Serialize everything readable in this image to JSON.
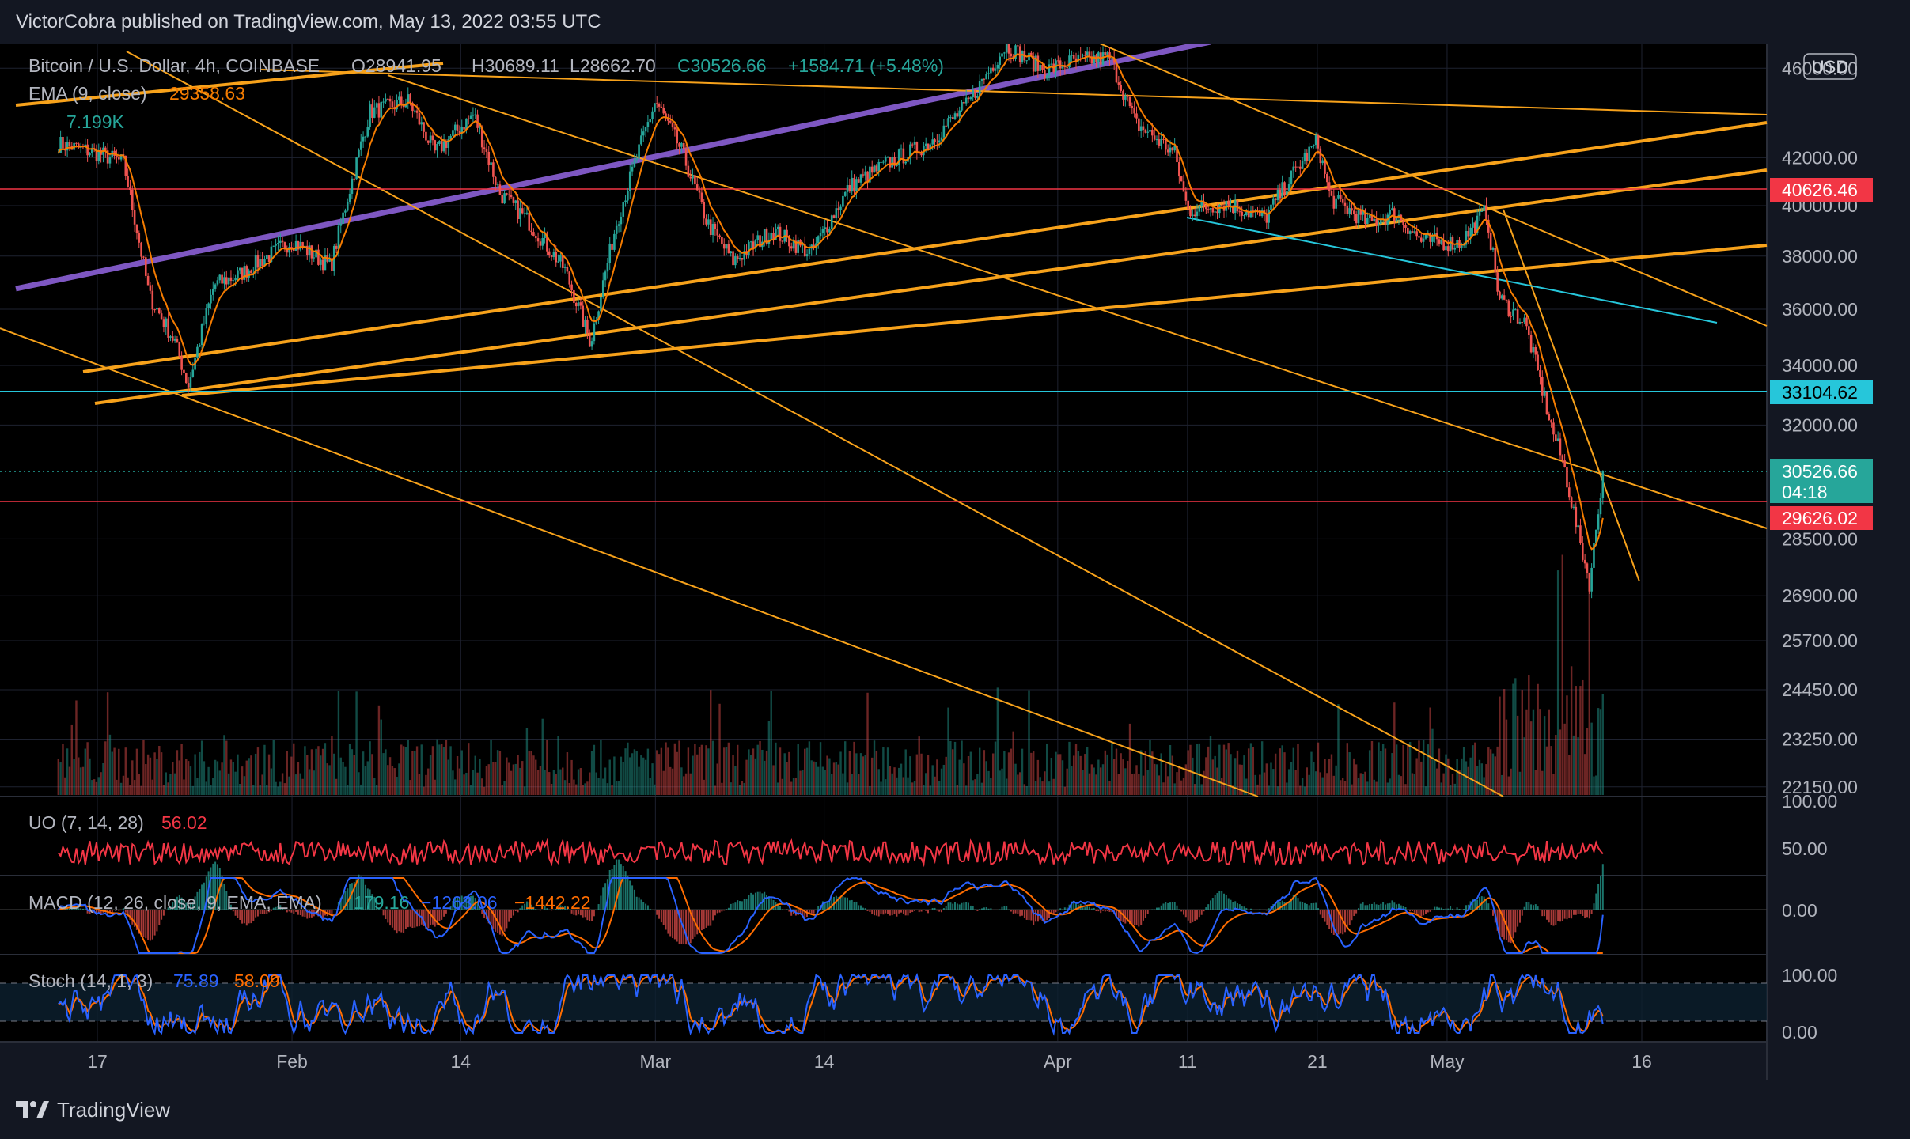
{
  "header": {
    "published": "VictorCobra published on TradingView.com, May 13, 2022 03:55 UTC"
  },
  "footer": {
    "brand": "TradingView",
    "logo_icon": "tradingview-logo-icon"
  },
  "symbol": {
    "line1": "Bitcoin / U.S. Dollar, 4h, COINBASE",
    "open": "O28941.95",
    "high": "H30689.11",
    "low": "L28662.70",
    "close": "C30526.66",
    "change": "+1584.71 (+5.48%)",
    "ema_label": "EMA (9, close)",
    "ema_value": "29358.63",
    "volume": "7.199K"
  },
  "currency": "USD",
  "colors": {
    "background": "#000000",
    "panel_bg": "#131722",
    "up": "#26a69a",
    "down": "#ef5350",
    "orange": "#f7a21b",
    "purple": "#7e57c2",
    "cyan": "#26c6da",
    "ema": "#f57c00",
    "uo": "#f23645",
    "macd": "#2962ff",
    "signal": "#ff6d00"
  },
  "price_axis": {
    "labels": [
      "46000.00",
      "42000.00",
      "40000.00",
      "38000.00",
      "36000.00",
      "34000.00",
      "32000.00",
      "28500.00",
      "26900.00",
      "25700.00",
      "24450.00",
      "23250.00",
      "22150.00"
    ],
    "first_label_partial": "46",
    "tags": {
      "red_high": "40626.46",
      "cyan": "33104.62",
      "last": "30526.66",
      "countdown": "04:18",
      "red_low": "29626.02"
    }
  },
  "time_axis": {
    "labels": [
      "17",
      "Feb",
      "14",
      "Mar",
      "14",
      "Apr",
      "11",
      "21",
      "May",
      "16"
    ]
  },
  "uo": {
    "label": "UO (7, 14, 28)",
    "value": "56.02",
    "axis": [
      "100.00",
      "50.00"
    ]
  },
  "macd": {
    "label": "MACD (12, 26, close, 9, EMA, EMA)",
    "hist": "179.16",
    "macd_value": "−1263.06",
    "signal_value": "−1442.22",
    "axis": [
      "0.00"
    ]
  },
  "stoch": {
    "label": "Stoch (14, 1, 3)",
    "k": "75.89",
    "d": "58.09",
    "axis": [
      "100.00",
      "0.00"
    ]
  },
  "chart_data": {
    "type": "candlestick",
    "title": "Bitcoin / U.S. Dollar, 4h, COINBASE",
    "ylim": [
      21600,
      46300
    ],
    "x_ticks": [
      "17",
      "Feb",
      "14",
      "Mar",
      "14",
      "Apr",
      "11",
      "21",
      "May",
      "16"
    ],
    "horizontal_levels": [
      40626.46,
      33104.62,
      29626.02
    ],
    "last_price": 30526.66,
    "ohlc_last": {
      "open": 28941.95,
      "high": 30689.11,
      "low": 28662.7,
      "close": 30526.66
    },
    "price_path": [
      [
        "2022-01-14",
        42600
      ],
      [
        "2022-01-17",
        42200
      ],
      [
        "2022-01-19",
        41800
      ],
      [
        "2022-01-21",
        36500
      ],
      [
        "2022-01-23",
        34800
      ],
      [
        "2022-01-24",
        33300
      ],
      [
        "2022-01-26",
        36900
      ],
      [
        "2022-01-28",
        37300
      ],
      [
        "2022-02-01",
        38600
      ],
      [
        "2022-02-04",
        37600
      ],
      [
        "2022-02-07",
        44000
      ],
      [
        "2022-02-10",
        44500
      ],
      [
        "2022-02-12",
        42200
      ],
      [
        "2022-02-15",
        43900
      ],
      [
        "2022-02-17",
        40500
      ],
      [
        "2022-02-19",
        39500
      ],
      [
        "2022-02-22",
        37500
      ],
      [
        "2022-02-24",
        34800
      ],
      [
        "2022-02-26",
        39300
      ],
      [
        "2022-03-01",
        44500
      ],
      [
        "2022-03-03",
        42300
      ],
      [
        "2022-03-05",
        39300
      ],
      [
        "2022-03-07",
        37800
      ],
      [
        "2022-03-10",
        39000
      ],
      [
        "2022-03-13",
        38100
      ],
      [
        "2022-03-16",
        40800
      ],
      [
        "2022-03-19",
        41800
      ],
      [
        "2022-03-22",
        42600
      ],
      [
        "2022-03-25",
        44300
      ],
      [
        "2022-03-28",
        47100
      ],
      [
        "2022-03-31",
        45900
      ],
      [
        "2022-04-02",
        46300
      ],
      [
        "2022-04-05",
        46500
      ],
      [
        "2022-04-07",
        43500
      ],
      [
        "2022-04-10",
        42200
      ],
      [
        "2022-04-11",
        39800
      ],
      [
        "2022-04-14",
        40100
      ],
      [
        "2022-04-17",
        39500
      ],
      [
        "2022-04-19",
        41200
      ],
      [
        "2022-04-21",
        42700
      ],
      [
        "2022-04-22",
        40300
      ],
      [
        "2022-04-25",
        39300
      ],
      [
        "2022-04-27",
        39700
      ],
      [
        "2022-04-29",
        38600
      ],
      [
        "2022-05-02",
        38500
      ],
      [
        "2022-05-04",
        39800
      ],
      [
        "2022-05-05",
        36400
      ],
      [
        "2022-05-07",
        35500
      ],
      [
        "2022-05-09",
        32000
      ],
      [
        "2022-05-10",
        30700
      ],
      [
        "2022-05-11",
        28800
      ],
      [
        "2022-05-12",
        27200
      ],
      [
        "2022-05-13",
        30526.66
      ]
    ]
  }
}
